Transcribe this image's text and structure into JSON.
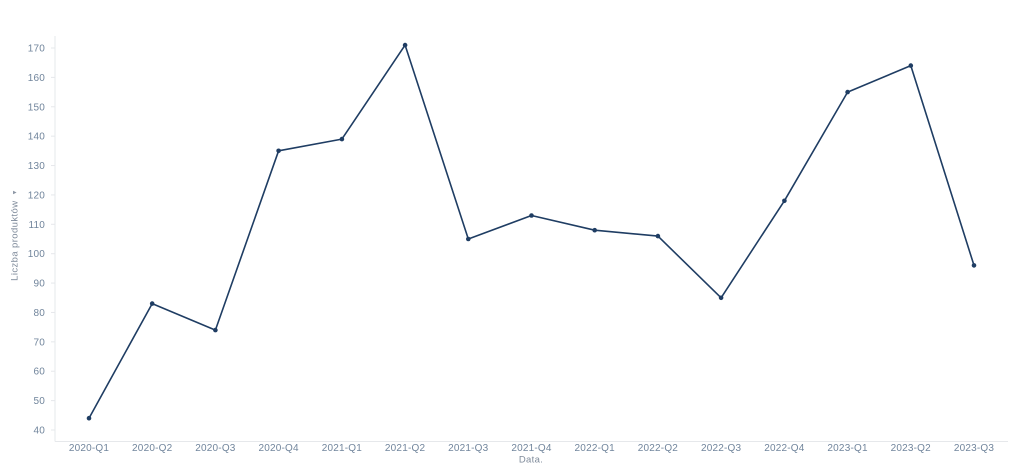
{
  "chart_data": {
    "type": "line",
    "title": "",
    "xlabel": "Data.",
    "ylabel": "Liczba produktów",
    "ylabel_sort_arrow": "▼",
    "categories": [
      "2020-Q1",
      "2020-Q2",
      "2020-Q3",
      "2020-Q4",
      "2021-Q1",
      "2021-Q2",
      "2021-Q3",
      "2021-Q4",
      "2022-Q1",
      "2022-Q2",
      "2022-Q3",
      "2022-Q4",
      "2023-Q1",
      "2023-Q2",
      "2023-Q3"
    ],
    "series": [
      {
        "name": "Liczba produktów",
        "values": [
          44,
          83,
          74,
          135,
          139,
          171,
          105,
          113,
          108,
          106,
          85,
          118,
          155,
          164,
          96
        ]
      }
    ],
    "ylim": [
      40,
      170
    ],
    "ytick_step": 10,
    "grid": false,
    "legend": "none",
    "colors": {
      "line": "#1f3d63",
      "marker": "#1f3d63",
      "tick_label": "#71859c",
      "axis_title": "#7e8a9a",
      "axis_line": "#e6e8eb",
      "background": "#ffffff"
    }
  }
}
